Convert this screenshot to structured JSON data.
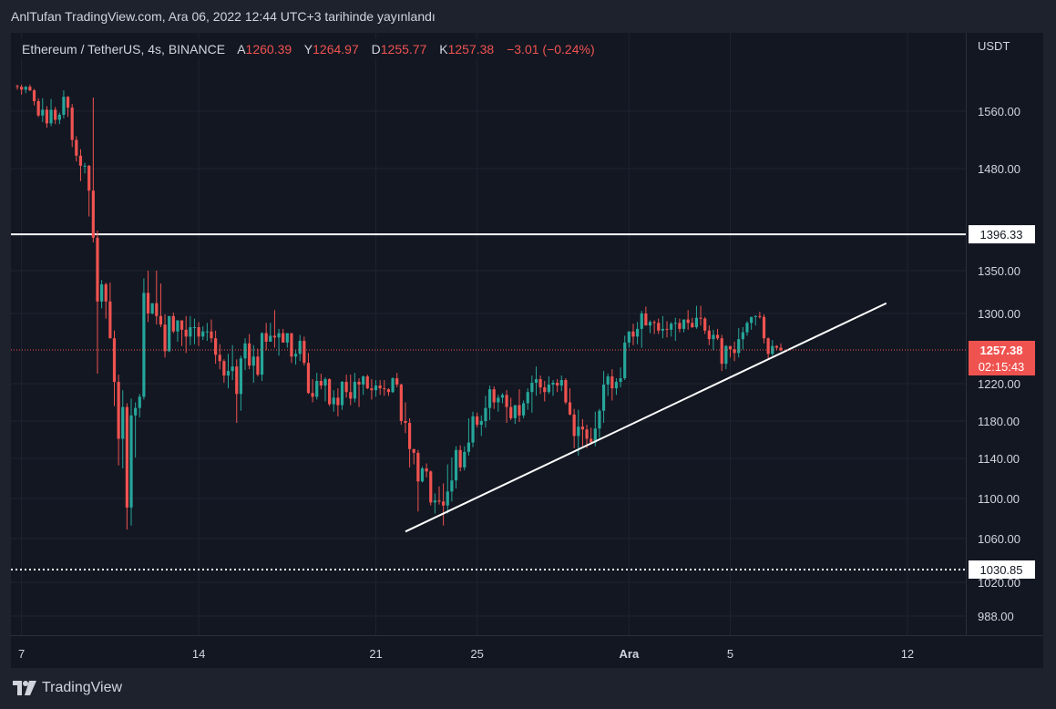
{
  "header": {
    "published": "AnlTufan TradingView.com, Ara 06, 2022 12:44 UTC+3 tarihinde yayınlandı"
  },
  "legend": {
    "symbol": "Ethereum / TetherUS, 4s, BINANCE",
    "open_label": "A",
    "open": "1260.39",
    "high_label": "Y",
    "high": "1264.97",
    "low_label": "D",
    "low": "1255.77",
    "close_label": "K",
    "close": "1257.38",
    "change": "−3.01 (−0.24%)"
  },
  "footer": {
    "brand": "TradingView",
    "logo_icon": "tradingview-logo-icon"
  },
  "colors": {
    "up": "#26a69a",
    "down": "#ef5350",
    "background": "#131722",
    "grid": "#1f2330",
    "text": "#d1d4dc",
    "line": "#ffffff"
  },
  "chart_data": {
    "type": "candlestick",
    "title": "Ethereum / TetherUS, 4s, BINANCE",
    "currency_label": "USDT",
    "y_ticks": [
      "1560.00",
      "1480.00",
      "1350.00",
      "1300.00",
      "1220.00",
      "1180.00",
      "1140.00",
      "1100.00",
      "1060.00",
      "1020.00",
      "988.00"
    ],
    "y_tick_values": [
      1560,
      1480,
      1350,
      1300,
      1220,
      1180,
      1140,
      1100,
      1060,
      1020,
      988
    ],
    "x_ticks": [
      "7",
      "14",
      "21",
      "25",
      "Ara",
      "5",
      "12"
    ],
    "x_tick_index": [
      1,
      43,
      85,
      109,
      145,
      169,
      211
    ],
    "last_price": "1257.38",
    "countdown": "02:15:43",
    "horizontal_lines": [
      {
        "label": "1396.33",
        "value": 1396.33,
        "style": "solid"
      },
      {
        "label": "1030.85",
        "value": 1030.85,
        "style": "dotted"
      }
    ],
    "trend_lines": [
      {
        "from_index": 92,
        "from_value": 1067,
        "to_index": 206,
        "to_value": 1312
      }
    ],
    "candles": [
      [
        1595,
        1597,
        1590,
        1594
      ],
      [
        1594,
        1597,
        1583,
        1590
      ],
      [
        1590,
        1595,
        1585,
        1594
      ],
      [
        1594,
        1597,
        1588,
        1589
      ],
      [
        1589,
        1591,
        1568,
        1574
      ],
      [
        1574,
        1578,
        1552,
        1554
      ],
      [
        1554,
        1578,
        1545,
        1562
      ],
      [
        1562,
        1567,
        1537,
        1543
      ],
      [
        1543,
        1577,
        1539,
        1562
      ],
      [
        1562,
        1566,
        1542,
        1548
      ],
      [
        1548,
        1558,
        1542,
        1555
      ],
      [
        1555,
        1589,
        1550,
        1580
      ],
      [
        1580,
        1581,
        1552,
        1565
      ],
      [
        1565,
        1570,
        1510,
        1520
      ],
      [
        1520,
        1525,
        1490,
        1498
      ],
      [
        1498,
        1507,
        1464,
        1484
      ],
      [
        1484,
        1488,
        1474,
        1484
      ],
      [
        1484,
        1485,
        1419,
        1452
      ],
      [
        1452,
        1579,
        1386,
        1392
      ],
      [
        1392,
        1401,
        1231,
        1314
      ],
      [
        1314,
        1339,
        1306,
        1334
      ],
      [
        1334,
        1336,
        1294,
        1314
      ],
      [
        1314,
        1336,
        1271,
        1271
      ],
      [
        1271,
        1280,
        1196,
        1222
      ],
      [
        1222,
        1230,
        1133,
        1161
      ],
      [
        1161,
        1213,
        1130,
        1195
      ],
      [
        1195,
        1199,
        1069,
        1091
      ],
      [
        1091,
        1204,
        1073,
        1186
      ],
      [
        1186,
        1200,
        1141,
        1194
      ],
      [
        1194,
        1209,
        1184,
        1206
      ],
      [
        1206,
        1341,
        1203,
        1324
      ],
      [
        1324,
        1350,
        1290,
        1300
      ],
      [
        1300,
        1312,
        1299,
        1312
      ],
      [
        1312,
        1350,
        1287,
        1297
      ],
      [
        1297,
        1335,
        1284,
        1287
      ],
      [
        1287,
        1299,
        1249,
        1256
      ],
      [
        1256,
        1297,
        1255,
        1297
      ],
      [
        1297,
        1301,
        1277,
        1279
      ],
      [
        1279,
        1292,
        1267,
        1292
      ],
      [
        1292,
        1292,
        1262,
        1281
      ],
      [
        1281,
        1297,
        1254,
        1273
      ],
      [
        1273,
        1297,
        1263,
        1284
      ],
      [
        1284,
        1294,
        1264,
        1284
      ],
      [
        1284,
        1290,
        1262,
        1273
      ],
      [
        1273,
        1285,
        1269,
        1279
      ],
      [
        1279,
        1289,
        1268,
        1279
      ],
      [
        1279,
        1293,
        1266,
        1271
      ],
      [
        1271,
        1280,
        1242,
        1252
      ],
      [
        1252,
        1264,
        1236,
        1245
      ],
      [
        1245,
        1247,
        1221,
        1229
      ],
      [
        1229,
        1253,
        1215,
        1234
      ],
      [
        1234,
        1263,
        1224,
        1239
      ],
      [
        1239,
        1247,
        1178,
        1209
      ],
      [
        1209,
        1251,
        1191,
        1248
      ],
      [
        1248,
        1271,
        1235,
        1265
      ],
      [
        1265,
        1276,
        1236,
        1240
      ],
      [
        1240,
        1263,
        1221,
        1250
      ],
      [
        1250,
        1259,
        1228,
        1230
      ],
      [
        1230,
        1278,
        1223,
        1277
      ],
      [
        1277,
        1289,
        1257,
        1267
      ],
      [
        1267,
        1289,
        1267,
        1274
      ],
      [
        1274,
        1304,
        1260,
        1272
      ],
      [
        1272,
        1282,
        1251,
        1277
      ],
      [
        1277,
        1282,
        1266,
        1266
      ],
      [
        1266,
        1277,
        1260,
        1277
      ],
      [
        1277,
        1277,
        1243,
        1250
      ],
      [
        1250,
        1258,
        1241,
        1253
      ],
      [
        1253,
        1275,
        1245,
        1268
      ],
      [
        1268,
        1273,
        1240,
        1243
      ],
      [
        1243,
        1254,
        1209,
        1210
      ],
      [
        1210,
        1225,
        1200,
        1206
      ],
      [
        1206,
        1232,
        1203,
        1223
      ],
      [
        1223,
        1231,
        1214,
        1218
      ],
      [
        1218,
        1227,
        1201,
        1225
      ],
      [
        1225,
        1226,
        1196,
        1198
      ],
      [
        1198,
        1213,
        1190,
        1205
      ],
      [
        1205,
        1215,
        1185,
        1197
      ],
      [
        1197,
        1223,
        1192,
        1222
      ],
      [
        1222,
        1230,
        1205,
        1211
      ],
      [
        1211,
        1230,
        1197,
        1204
      ],
      [
        1204,
        1232,
        1200,
        1222
      ],
      [
        1222,
        1226,
        1195,
        1219
      ],
      [
        1219,
        1229,
        1208,
        1228
      ],
      [
        1228,
        1230,
        1214,
        1215
      ],
      [
        1215,
        1225,
        1203,
        1213
      ],
      [
        1213,
        1224,
        1206,
        1218
      ],
      [
        1218,
        1224,
        1208,
        1215
      ],
      [
        1215,
        1224,
        1207,
        1214
      ],
      [
        1214,
        1215,
        1207,
        1211
      ],
      [
        1211,
        1227,
        1210,
        1226
      ],
      [
        1226,
        1232,
        1216,
        1219
      ],
      [
        1219,
        1220,
        1176,
        1180
      ],
      [
        1180,
        1200,
        1167,
        1178
      ],
      [
        1178,
        1183,
        1131,
        1150
      ],
      [
        1150,
        1150,
        1134,
        1146
      ],
      [
        1146,
        1149,
        1087,
        1117
      ],
      [
        1117,
        1132,
        1116,
        1130
      ],
      [
        1130,
        1135,
        1121,
        1127
      ],
      [
        1127,
        1128,
        1093,
        1096
      ],
      [
        1096,
        1105,
        1085,
        1098
      ],
      [
        1098,
        1112,
        1094,
        1097
      ],
      [
        1097,
        1115,
        1073,
        1093
      ],
      [
        1093,
        1134,
        1085,
        1107
      ],
      [
        1107,
        1141,
        1097,
        1118
      ],
      [
        1118,
        1153,
        1110,
        1149
      ],
      [
        1149,
        1154,
        1127,
        1131
      ],
      [
        1131,
        1153,
        1128,
        1147
      ],
      [
        1147,
        1183,
        1143,
        1157
      ],
      [
        1157,
        1190,
        1152,
        1185
      ],
      [
        1185,
        1189,
        1173,
        1176
      ],
      [
        1176,
        1186,
        1164,
        1180
      ],
      [
        1180,
        1207,
        1173,
        1194
      ],
      [
        1194,
        1218,
        1181,
        1214
      ],
      [
        1214,
        1217,
        1193,
        1200
      ],
      [
        1200,
        1208,
        1190,
        1205
      ],
      [
        1205,
        1210,
        1199,
        1208
      ],
      [
        1208,
        1213,
        1178,
        1195
      ],
      [
        1195,
        1205,
        1181,
        1183
      ],
      [
        1183,
        1197,
        1177,
        1197
      ],
      [
        1197,
        1214,
        1179,
        1186
      ],
      [
        1186,
        1202,
        1183,
        1199
      ],
      [
        1199,
        1215,
        1192,
        1211
      ],
      [
        1211,
        1229,
        1189,
        1221
      ],
      [
        1221,
        1239,
        1207,
        1225
      ],
      [
        1225,
        1229,
        1209,
        1216
      ],
      [
        1216,
        1223,
        1201,
        1211
      ],
      [
        1211,
        1228,
        1209,
        1219
      ],
      [
        1219,
        1224,
        1207,
        1221
      ],
      [
        1221,
        1225,
        1211,
        1218
      ],
      [
        1218,
        1229,
        1212,
        1224
      ],
      [
        1224,
        1226,
        1198,
        1200
      ],
      [
        1200,
        1215,
        1186,
        1187
      ],
      [
        1187,
        1193,
        1151,
        1164
      ],
      [
        1164,
        1192,
        1143,
        1174
      ],
      [
        1174,
        1182,
        1153,
        1171
      ],
      [
        1171,
        1176,
        1151,
        1161
      ],
      [
        1161,
        1173,
        1155,
        1157
      ],
      [
        1157,
        1190,
        1153,
        1172
      ],
      [
        1172,
        1193,
        1162,
        1191
      ],
      [
        1191,
        1234,
        1178,
        1219
      ],
      [
        1219,
        1231,
        1207,
        1228
      ],
      [
        1228,
        1236,
        1202,
        1215
      ],
      [
        1215,
        1226,
        1208,
        1222
      ],
      [
        1222,
        1238,
        1216,
        1226
      ],
      [
        1226,
        1274,
        1224,
        1266
      ],
      [
        1266,
        1279,
        1260,
        1279
      ],
      [
        1279,
        1288,
        1263,
        1273
      ],
      [
        1273,
        1290,
        1264,
        1282
      ],
      [
        1282,
        1303,
        1260,
        1300
      ],
      [
        1300,
        1308,
        1286,
        1286
      ],
      [
        1286,
        1292,
        1277,
        1290
      ],
      [
        1290,
        1292,
        1276,
        1289
      ],
      [
        1289,
        1294,
        1276,
        1280
      ],
      [
        1280,
        1297,
        1271,
        1282
      ],
      [
        1282,
        1291,
        1272,
        1281
      ],
      [
        1281,
        1290,
        1273,
        1288
      ],
      [
        1288,
        1295,
        1268,
        1289
      ],
      [
        1289,
        1294,
        1278,
        1282
      ],
      [
        1282,
        1293,
        1278,
        1293
      ],
      [
        1293,
        1304,
        1281,
        1289
      ],
      [
        1289,
        1295,
        1283,
        1284
      ],
      [
        1284,
        1309,
        1282,
        1295
      ],
      [
        1295,
        1309,
        1286,
        1294
      ],
      [
        1294,
        1296,
        1276,
        1280
      ],
      [
        1280,
        1286,
        1263,
        1270
      ],
      [
        1270,
        1281,
        1257,
        1275
      ],
      [
        1275,
        1282,
        1269,
        1271
      ],
      [
        1271,
        1275,
        1234,
        1242
      ],
      [
        1242,
        1263,
        1236,
        1262
      ],
      [
        1262,
        1262,
        1249,
        1258
      ],
      [
        1258,
        1267,
        1245,
        1254
      ],
      [
        1254,
        1283,
        1249,
        1270
      ],
      [
        1270,
        1284,
        1258,
        1278
      ],
      [
        1278,
        1291,
        1274,
        1289
      ],
      [
        1289,
        1296,
        1281,
        1296
      ],
      [
        1296,
        1298,
        1286,
        1297
      ],
      [
        1297,
        1302,
        1294,
        1296
      ],
      [
        1296,
        1299,
        1265,
        1271
      ],
      [
        1271,
        1272,
        1248,
        1253
      ],
      [
        1253,
        1269,
        1251,
        1262
      ],
      [
        1262,
        1263,
        1257,
        1260
      ],
      [
        1260,
        1265,
        1256,
        1257
      ]
    ]
  }
}
